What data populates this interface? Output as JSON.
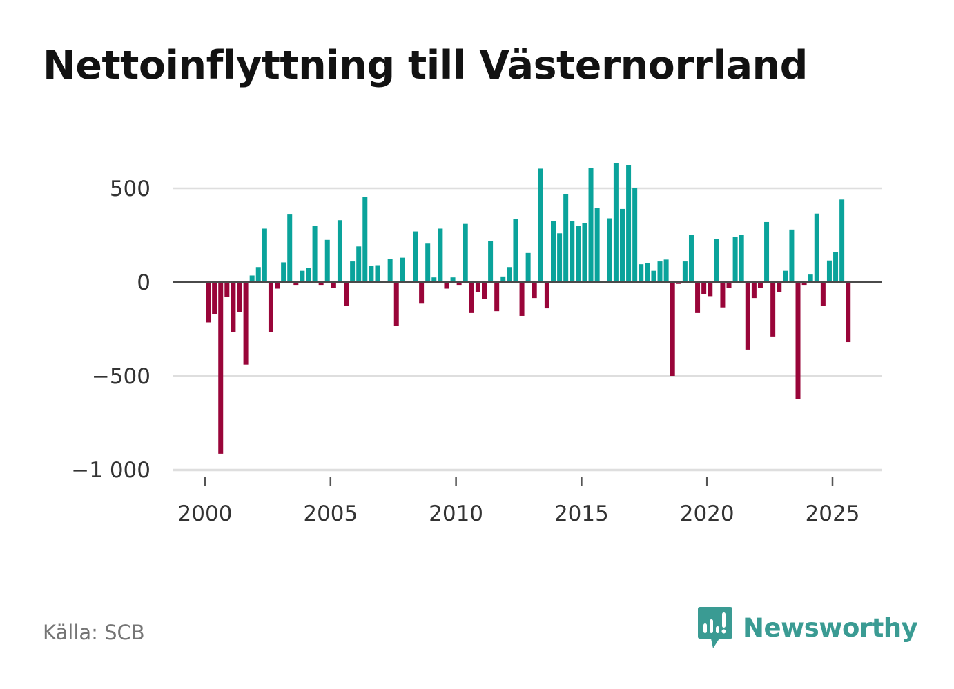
{
  "chart_data": {
    "type": "bar",
    "title": "Nettoinflyttning till Västernorrland",
    "xlabel": "",
    "ylabel": "",
    "frequency": "quarterly",
    "start": [
      2000,
      1
    ],
    "ylim": [
      -1000,
      700
    ],
    "y_ticks": [
      500,
      0,
      -500,
      -1000
    ],
    "y_tick_labels": [
      "500",
      "0",
      "−500",
      "−1 000"
    ],
    "x_ticks": [
      2000,
      2005,
      2010,
      2015,
      2020,
      2025
    ],
    "x_tick_labels": [
      "2000",
      "2005",
      "2010",
      "2015",
      "2020",
      "2025"
    ],
    "values": [
      -215,
      -170,
      -915,
      -80,
      -265,
      -160,
      -440,
      35,
      80,
      285,
      -265,
      -35,
      105,
      360,
      -15,
      60,
      75,
      300,
      -15,
      225,
      -30,
      330,
      -125,
      110,
      190,
      455,
      85,
      90,
      0,
      125,
      -235,
      130,
      0,
      270,
      -115,
      205,
      25,
      285,
      -35,
      25,
      -15,
      310,
      -165,
      -55,
      -90,
      220,
      -155,
      30,
      80,
      335,
      -180,
      155,
      -85,
      605,
      -140,
      325,
      260,
      470,
      325,
      300,
      315,
      610,
      395,
      0,
      340,
      635,
      390,
      625,
      500,
      95,
      100,
      60,
      110,
      120,
      -500,
      -10,
      110,
      250,
      -165,
      -65,
      -75,
      230,
      -135,
      -30,
      240,
      250,
      -360,
      -85,
      -30,
      320,
      -290,
      -55,
      60,
      280,
      -625,
      -15,
      40,
      365,
      -125,
      115,
      160,
      440,
      -320
    ],
    "positive_color": "#0aa39b",
    "negative_color": "#990539",
    "grid": true
  },
  "source_text": "Källa: SCB",
  "brand": {
    "name": "Newsworthy",
    "icon": "newsworthy-logo-icon",
    "color": "#3a9b93"
  }
}
